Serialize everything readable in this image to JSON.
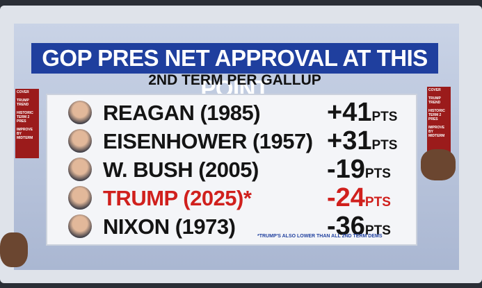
{
  "header": {
    "title": "GOP PRES NET APPROVAL AT THIS POINT",
    "subtitle": "2ND TERM PER GALLUP"
  },
  "table": {
    "rows": [
      {
        "name": "REAGAN (1985)",
        "value": "+41",
        "unit": "PTS"
      },
      {
        "name": "EISENHOWER (1957)",
        "value": "+31",
        "unit": "PTS"
      },
      {
        "name": "W. BUSH (2005)",
        "value": "-19",
        "unit": "PTS"
      },
      {
        "name": "TRUMP (2025)*",
        "value": "-24",
        "unit": "PTS"
      },
      {
        "name": "NIXON (1973)",
        "value": "-36",
        "unit": "PTS"
      }
    ]
  },
  "footnote": "*TRUMP'S ALSO LOWER THAN ALL 2ND TERM DEMS",
  "left_menu": [
    "COVER",
    "TRUMP TREND",
    "HISTORIC TERM 2 PRES",
    "IMPROVE BY MIDTERM"
  ],
  "right_menu": [
    "COVER",
    "TRUMP TREND",
    "HISTORIC TERM 2 PRES",
    "IMPROVE BY MIDTERM"
  ]
}
